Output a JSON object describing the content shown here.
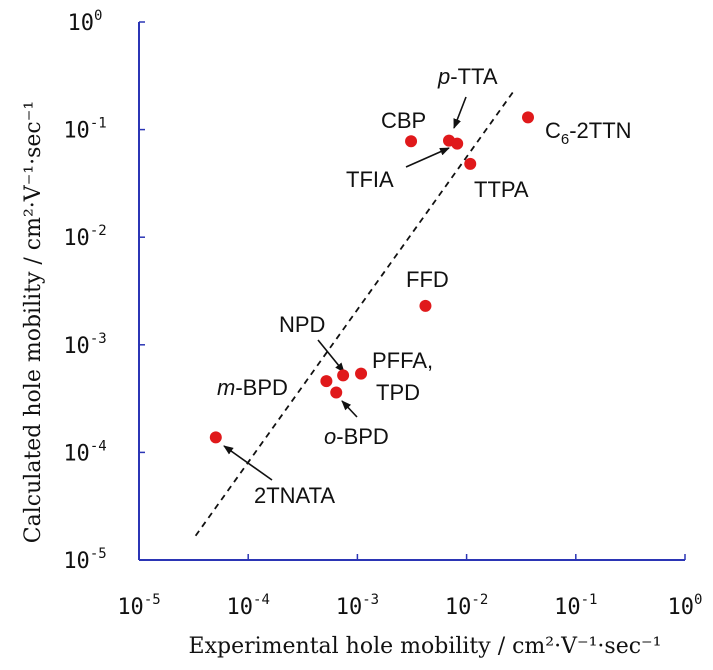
{
  "chart_data": {
    "type": "scatter",
    "x_scale": "log",
    "y_scale": "log",
    "xlim": [
      1e-05,
      1
    ],
    "ylim": [
      1e-05,
      1
    ],
    "grid": false,
    "xlabel": "Experimental hole mobility / cm²·V⁻¹·sec⁻¹",
    "ylabel": "Calculated hole mobility / cm²·V⁻¹·sec⁻¹",
    "x_ticks": [
      {
        "base": "10",
        "exp": "-5",
        "value": 1e-05
      },
      {
        "base": "10",
        "exp": "-4",
        "value": 0.0001
      },
      {
        "base": "10",
        "exp": "-3",
        "value": 0.001
      },
      {
        "base": "10",
        "exp": "-2",
        "value": 0.01
      },
      {
        "base": "10",
        "exp": "-1",
        "value": 0.1
      },
      {
        "base": "10",
        "exp": "0",
        "value": 1
      }
    ],
    "y_ticks": [
      {
        "base": "10",
        "exp": "-5",
        "value": 1e-05
      },
      {
        "base": "10",
        "exp": "-4",
        "value": 0.0001
      },
      {
        "base": "10",
        "exp": "-3",
        "value": 0.001
      },
      {
        "base": "10",
        "exp": "-2",
        "value": 0.01
      },
      {
        "base": "10",
        "exp": "-1",
        "value": 0.1
      },
      {
        "base": "10",
        "exp": "0",
        "value": 1
      }
    ],
    "points": [
      {
        "x": 5.05e-05,
        "y": 0.000138,
        "label": "2TNATA"
      },
      {
        "x": 0.00052,
        "y": 0.00046,
        "label": "m-BPD"
      },
      {
        "x": 0.00064,
        "y": 0.00036,
        "label": "o-BPD"
      },
      {
        "x": 0.00074,
        "y": 0.00052,
        "label": "NPD"
      },
      {
        "x": 0.00108,
        "y": 0.00054,
        "label": "PFFA, TPD"
      },
      {
        "x": 0.0042,
        "y": 0.0023,
        "label": "FFD"
      },
      {
        "x": 0.0031,
        "y": 0.078,
        "label": "CBP"
      },
      {
        "x": 0.0069,
        "y": 0.079,
        "label": "p-TTA"
      },
      {
        "x": 0.0082,
        "y": 0.074,
        "label": "TFIA"
      },
      {
        "x": 0.0108,
        "y": 0.048,
        "label": "TTPA"
      },
      {
        "x": 0.0365,
        "y": 0.13,
        "label": "C6-2TTN"
      }
    ],
    "fit_line": {
      "style": "dashed",
      "x": [
        3.3e-05,
        0.0265
      ],
      "y": [
        1.68e-05,
        0.222
      ]
    },
    "annotations": [
      {
        "key": "cbp",
        "parts": [
          {
            "t": "CBP"
          }
        ]
      },
      {
        "key": "ptta",
        "parts": [
          {
            "t": "p",
            "style": "italic"
          },
          {
            "t": "-TTA"
          }
        ]
      },
      {
        "key": "c6",
        "parts": [
          {
            "t": "C"
          },
          {
            "t": "6",
            "style": "sub"
          },
          {
            "t": "-2TTN"
          }
        ]
      },
      {
        "key": "tfia",
        "parts": [
          {
            "t": "TFIA"
          }
        ]
      },
      {
        "key": "ttpa",
        "parts": [
          {
            "t": "TTPA"
          }
        ]
      },
      {
        "key": "ffd",
        "parts": [
          {
            "t": "FFD"
          }
        ]
      },
      {
        "key": "npd",
        "parts": [
          {
            "t": "NPD"
          }
        ]
      },
      {
        "key": "pffa",
        "parts": [
          {
            "t": "PFFA,"
          }
        ]
      },
      {
        "key": "tpd",
        "parts": [
          {
            "t": "TPD"
          }
        ]
      },
      {
        "key": "mbpd",
        "parts": [
          {
            "t": "m",
            "style": "italic"
          },
          {
            "t": "-BPD"
          }
        ]
      },
      {
        "key": "obpd",
        "parts": [
          {
            "t": "o",
            "style": "italic"
          },
          {
            "t": "-BPD"
          }
        ]
      },
      {
        "key": "tnata",
        "parts": [
          {
            "t": "2TNATA"
          }
        ]
      }
    ],
    "colors": {
      "marker": "#e0191b",
      "axis": "#2b35b5",
      "text": "#111111",
      "fit_line": "#111111"
    }
  }
}
